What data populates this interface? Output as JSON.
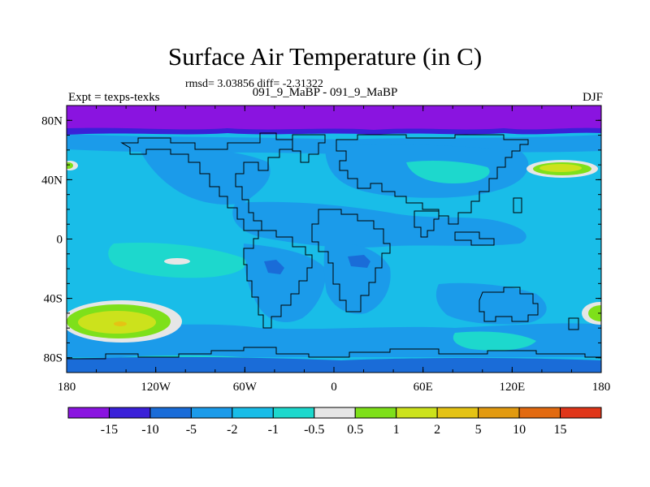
{
  "title": "Surface Air Temperature (in C)",
  "stats": "rmsd= 3.03856 diff= -2.31322",
  "caption": "091_9_MaBP - 091_9_MaBP",
  "expt_label": "Expt = texps-texks",
  "season": "DJF",
  "chart_data": {
    "type": "heatmap",
    "title": "Surface Air Temperature (in C)",
    "xlabel": "",
    "ylabel": "",
    "xlim": [
      -180,
      180
    ],
    "ylim": [
      -90,
      90
    ],
    "x_ticks": [
      {
        "value": -180,
        "label": "180"
      },
      {
        "value": -120,
        "label": "120W"
      },
      {
        "value": -60,
        "label": "60W"
      },
      {
        "value": 0,
        "label": "0"
      },
      {
        "value": 60,
        "label": "60E"
      },
      {
        "value": 120,
        "label": "120E"
      },
      {
        "value": 180,
        "label": "180"
      }
    ],
    "y_ticks": [
      {
        "value": 80,
        "label": "80N"
      },
      {
        "value": 40,
        "label": "40N"
      },
      {
        "value": 0,
        "label": "0"
      },
      {
        "value": -40,
        "label": "40S"
      },
      {
        "value": -80,
        "label": "80S"
      }
    ],
    "colorbar": {
      "colors": [
        "#8a14e0",
        "#3a20d8",
        "#1a6cd8",
        "#1b9bea",
        "#19bde8",
        "#1dd8cd",
        "#e6e6e6",
        "#7ee01a",
        "#cce21c",
        "#e5c314",
        "#e29a10",
        "#e26a10",
        "#e0361a"
      ],
      "labels": [
        "-15",
        "-10",
        "-5",
        "-2",
        "-1",
        "-0.5",
        "0.5",
        "1",
        "2",
        "5",
        "10",
        "15"
      ]
    },
    "regions": [
      {
        "name": "background",
        "level": "-2..-1",
        "color": "#19bde8"
      },
      {
        "name": "arctic band",
        "level": "< -15",
        "color": "#8a14e0"
      },
      {
        "name": "south pacific warm anomaly",
        "level": "2..5",
        "color": "#cce21c"
      },
      {
        "name": "north pacific warm anomaly",
        "level": "1..2",
        "color": "#7ee01a"
      }
    ]
  }
}
